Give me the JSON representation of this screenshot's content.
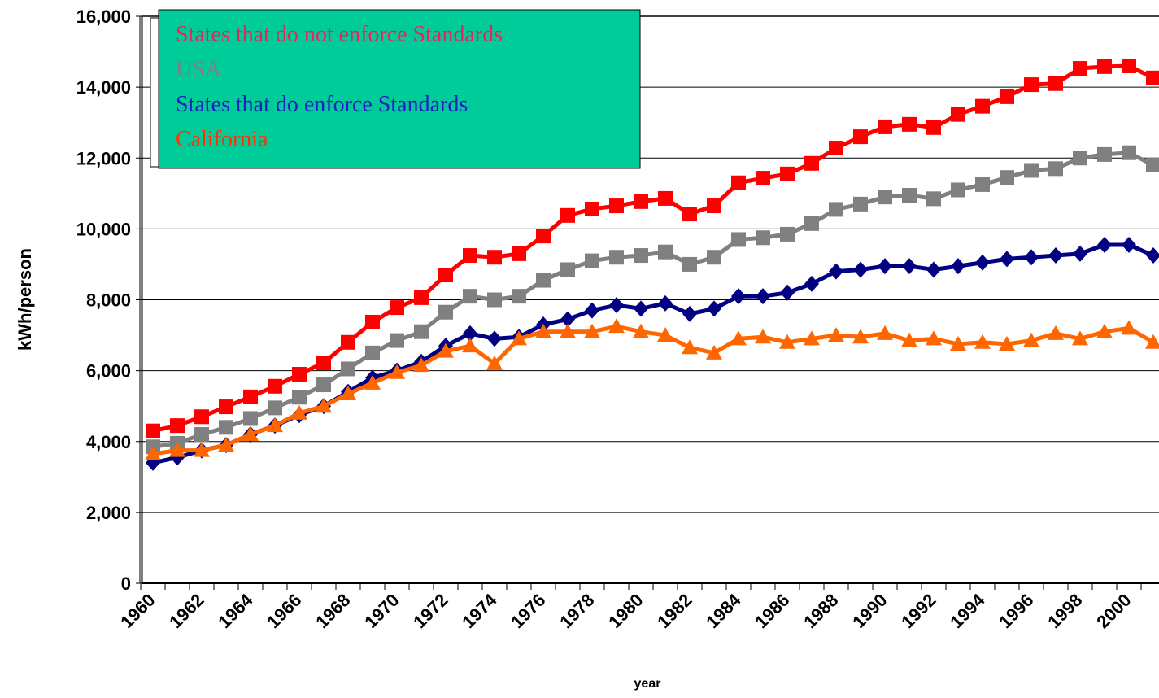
{
  "chart_data": {
    "type": "line",
    "x_label": "year",
    "y_label": "kWh/person",
    "categories": [
      "1960",
      null,
      "1962",
      null,
      "1964",
      null,
      "1966",
      null,
      "1968",
      null,
      "1970",
      null,
      "1972",
      null,
      "1974",
      null,
      "1976",
      null,
      "1978",
      null,
      "1980",
      null,
      "1982",
      null,
      "1984",
      null,
      "1986",
      null,
      "1988",
      null,
      "1990",
      null,
      "1992",
      null,
      "1994",
      null,
      "1996",
      null,
      "1998",
      null,
      "2000",
      null
    ],
    "ylim": [
      0,
      16000
    ],
    "yticks": [
      {
        "value": 0,
        "label": "0"
      },
      {
        "value": 2000,
        "label": "2,000"
      },
      {
        "value": 4000,
        "label": "4,000"
      },
      {
        "value": 6000,
        "label": "6,000"
      },
      {
        "value": 8000,
        "label": "8,000"
      },
      {
        "value": 10000,
        "label": "10,000"
      },
      {
        "value": 12000,
        "label": "12,000"
      },
      {
        "value": 14000,
        "label": "14,000"
      },
      {
        "value": 16000,
        "label": "16,000"
      }
    ],
    "grid": true,
    "legend_position": "upper left",
    "legend_color": "#00cc99",
    "series": [
      {
        "name": "States that do not enforce Standards",
        "color": "#ff0000",
        "label_color": "#e8245c",
        "marker": "square",
        "values": [
          4300,
          4450,
          4700,
          4980,
          5260,
          5560,
          5900,
          6220,
          6800,
          7370,
          7780,
          8060,
          8700,
          9250,
          9200,
          9300,
          9800,
          10380,
          10560,
          10650,
          10770,
          10860,
          10420,
          10650,
          11300,
          11430,
          11550,
          11850,
          12280,
          12600,
          12880,
          12950,
          12860,
          13230,
          13460,
          13730,
          14070,
          14100,
          14530,
          14580,
          14600,
          14260
        ]
      },
      {
        "name": "USA",
        "color": "#808080",
        "label_color": "#808080",
        "marker": "square",
        "values": [
          3850,
          3950,
          4200,
          4400,
          4650,
          4950,
          5250,
          5600,
          6050,
          6500,
          6850,
          7100,
          7650,
          8100,
          8000,
          8100,
          8550,
          8850,
          9100,
          9200,
          9250,
          9350,
          9000,
          9200,
          9700,
          9750,
          9850,
          10150,
          10550,
          10700,
          10900,
          10950,
          10850,
          11100,
          11250,
          11450,
          11650,
          11700,
          12000,
          12100,
          12150,
          11800
        ]
      },
      {
        "name": "States that do enforce Standards",
        "color": "#000080",
        "label_color": "#2020c0",
        "marker": "diamond",
        "values": [
          3400,
          3550,
          3750,
          3900,
          4200,
          4450,
          4750,
          5000,
          5400,
          5800,
          6000,
          6250,
          6700,
          7050,
          6900,
          6950,
          7300,
          7450,
          7700,
          7850,
          7750,
          7900,
          7600,
          7750,
          8100,
          8100,
          8200,
          8450,
          8800,
          8850,
          8950,
          8950,
          8850,
          8950,
          9050,
          9150,
          9200,
          9250,
          9300,
          9550,
          9550,
          9250
        ]
      },
      {
        "name": "California",
        "color": "#ff6600",
        "label_color": "#ff3300",
        "marker": "triangle",
        "values": [
          3650,
          3750,
          3750,
          3900,
          4200,
          4450,
          4800,
          5000,
          5350,
          5650,
          5950,
          6150,
          6550,
          6700,
          6200,
          6900,
          7100,
          7100,
          7100,
          7250,
          7100,
          7000,
          6650,
          6500,
          6900,
          6950,
          6800,
          6900,
          7000,
          6950,
          7050,
          6850,
          6900,
          6750,
          6800,
          6750,
          6850,
          7050,
          6900,
          7100,
          7200,
          6800
        ]
      }
    ]
  }
}
